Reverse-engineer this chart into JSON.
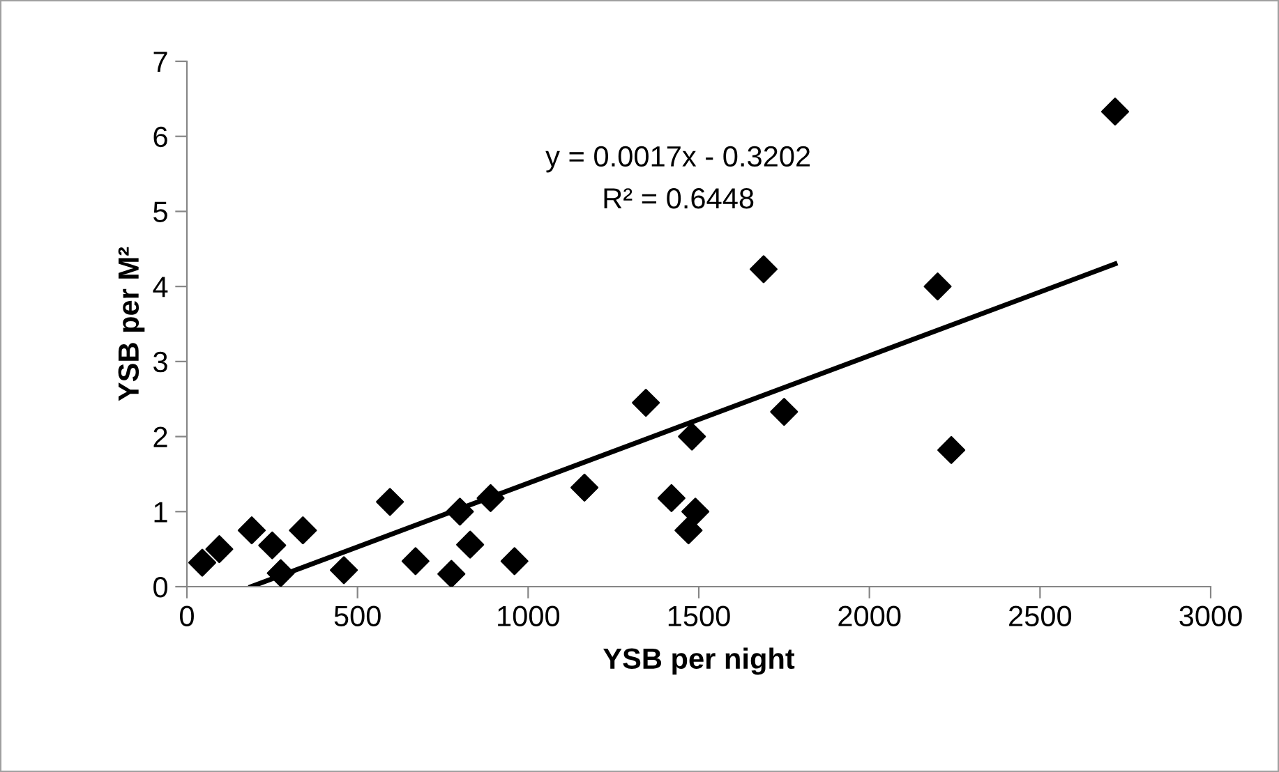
{
  "chart_data": {
    "type": "scatter",
    "xlabel": "YSB per night",
    "ylabel": "YSB per M²",
    "xlim": [
      0,
      3000
    ],
    "ylim": [
      0,
      7
    ],
    "xticks": [
      0,
      500,
      1000,
      1500,
      2000,
      2500,
      3000
    ],
    "yticks": [
      0,
      1,
      2,
      3,
      4,
      5,
      6,
      7
    ],
    "grid": false,
    "legend": false,
    "annotations": [
      "y = 0.0017x - 0.3202",
      "R² = 0.6448"
    ],
    "series": [
      {
        "marker": "diamond",
        "color": "#000000",
        "x": [
          45,
          95,
          190,
          250,
          275,
          340,
          460,
          595,
          670,
          775,
          800,
          830,
          890,
          960,
          1165,
          1345,
          1420,
          1470,
          1480,
          1490,
          1690,
          1750,
          2200,
          2240,
          2720
        ],
        "values": [
          0.32,
          0.5,
          0.75,
          0.55,
          0.18,
          0.75,
          0.22,
          1.13,
          0.34,
          0.17,
          1.0,
          0.56,
          1.18,
          0.34,
          1.32,
          2.45,
          1.18,
          0.75,
          2.0,
          1.0,
          4.23,
          2.33,
          4.0,
          1.82,
          6.33
        ]
      },
      {
        "type": "line",
        "marker": "none",
        "color": "#000000",
        "x": [
          188,
          2720
        ],
        "values": [
          0,
          4.3
        ]
      }
    ]
  }
}
